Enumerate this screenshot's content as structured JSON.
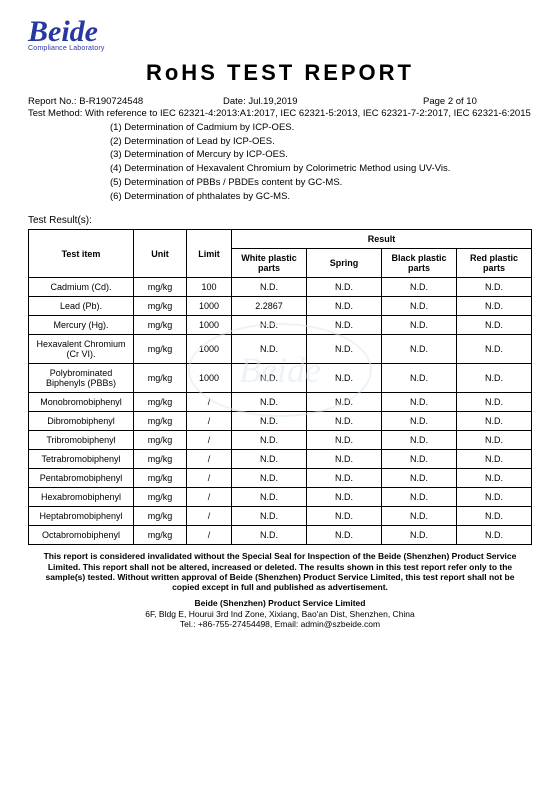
{
  "logo": {
    "name": "Beide",
    "sub": "Compliance Laboratory"
  },
  "title": "RoHS  TEST  REPORT",
  "meta": {
    "report_no_label": "Report No.: ",
    "report_no": "B-R190724548",
    "date_label": "Date: ",
    "date": "Jul.19,2019",
    "page_label": "Page 2 of 10",
    "method_label": "Test Method: ",
    "method_text": "With reference to IEC 62321-4:2013:A1:2017, IEC 62321-5:2013, IEC 62321-7-2:2017, IEC 62321-6:2015"
  },
  "determinations": [
    "(1) Determination of Cadmium by ICP-OES.",
    "(2) Determination of Lead by ICP-OES.",
    "(3) Determination of Mercury by ICP-OES.",
    "(4) Determination of Hexavalent Chromium by Colorimetric Method using UV-Vis.",
    "(5) Determination of PBBs / PBDEs content by GC-MS.",
    "(6) Determination of phthalates by GC-MS."
  ],
  "result_label": "Test Result(s):",
  "table": {
    "headers": {
      "item": "Test item",
      "unit": "Unit",
      "limit": "Limit",
      "result": "Result",
      "col1": "White plastic parts",
      "col2": "Spring",
      "col3": "Black plastic parts",
      "col4": "Red plastic parts"
    },
    "rows": [
      {
        "item": "Cadmium (Cd).",
        "unit": "mg/kg",
        "limit": "100",
        "v": [
          "N.D.",
          "N.D.",
          "N.D.",
          "N.D."
        ]
      },
      {
        "item": "Lead (Pb).",
        "unit": "mg/kg",
        "limit": "1000",
        "v": [
          "2.2867",
          "N.D.",
          "N.D.",
          "N.D."
        ]
      },
      {
        "item": "Mercury (Hg).",
        "unit": "mg/kg",
        "limit": "1000",
        "v": [
          "N.D.",
          "N.D.",
          "N.D.",
          "N.D."
        ]
      },
      {
        "item": "Hexavalent Chromium (Cr VI).",
        "unit": "mg/kg",
        "limit": "1000",
        "v": [
          "N.D.",
          "N.D.",
          "N.D.",
          "N.D."
        ]
      },
      {
        "item": "Polybrominated Biphenyls (PBBs)",
        "unit": "mg/kg",
        "limit": "1000",
        "v": [
          "N.D.",
          "N.D.",
          "N.D.",
          "N.D."
        ]
      },
      {
        "item": "Monobromobiphenyl",
        "unit": "mg/kg",
        "limit": "/",
        "v": [
          "N.D.",
          "N.D.",
          "N.D.",
          "N.D."
        ]
      },
      {
        "item": "Dibromobiphenyl",
        "unit": "mg/kg",
        "limit": "/",
        "v": [
          "N.D.",
          "N.D.",
          "N.D.",
          "N.D."
        ]
      },
      {
        "item": "Tribromobiphenyl",
        "unit": "mg/kg",
        "limit": "/",
        "v": [
          "N.D.",
          "N.D.",
          "N.D.",
          "N.D."
        ]
      },
      {
        "item": "Tetrabromobiphenyl",
        "unit": "mg/kg",
        "limit": "/",
        "v": [
          "N.D.",
          "N.D.",
          "N.D.",
          "N.D."
        ]
      },
      {
        "item": "Pentabromobiphenyl",
        "unit": "mg/kg",
        "limit": "/",
        "v": [
          "N.D.",
          "N.D.",
          "N.D.",
          "N.D."
        ]
      },
      {
        "item": "Hexabromobiphenyl",
        "unit": "mg/kg",
        "limit": "/",
        "v": [
          "N.D.",
          "N.D.",
          "N.D.",
          "N.D."
        ]
      },
      {
        "item": "Heptabromobiphenyl",
        "unit": "mg/kg",
        "limit": "/",
        "v": [
          "N.D.",
          "N.D.",
          "N.D.",
          "N.D."
        ]
      },
      {
        "item": "Octabromobiphenyl",
        "unit": "mg/kg",
        "limit": "/",
        "v": [
          "N.D.",
          "N.D.",
          "N.D.",
          "N.D."
        ]
      }
    ]
  },
  "disclaimer": "This report is considered invalidated without the Special Seal for Inspection of the Beide (Shenzhen) Product Service Limited. This report shall not be altered, increased or deleted. The results shown in this test report refer only to the sample(s) tested. Without written approval of Beide (Shenzhen) Product Service Limited, this test report shall not be copied except in full and published as advertisement.",
  "footer": {
    "name": "Beide (Shenzhen) Product Service Limited",
    "addr": "6F, Bldg E, Hourui 3rd Ind Zone, Xixiang, Bao'an Dist, Shenzhen, China",
    "contact": "Tel.: +86-755-27454498, Email: admin@szbeide.com"
  }
}
